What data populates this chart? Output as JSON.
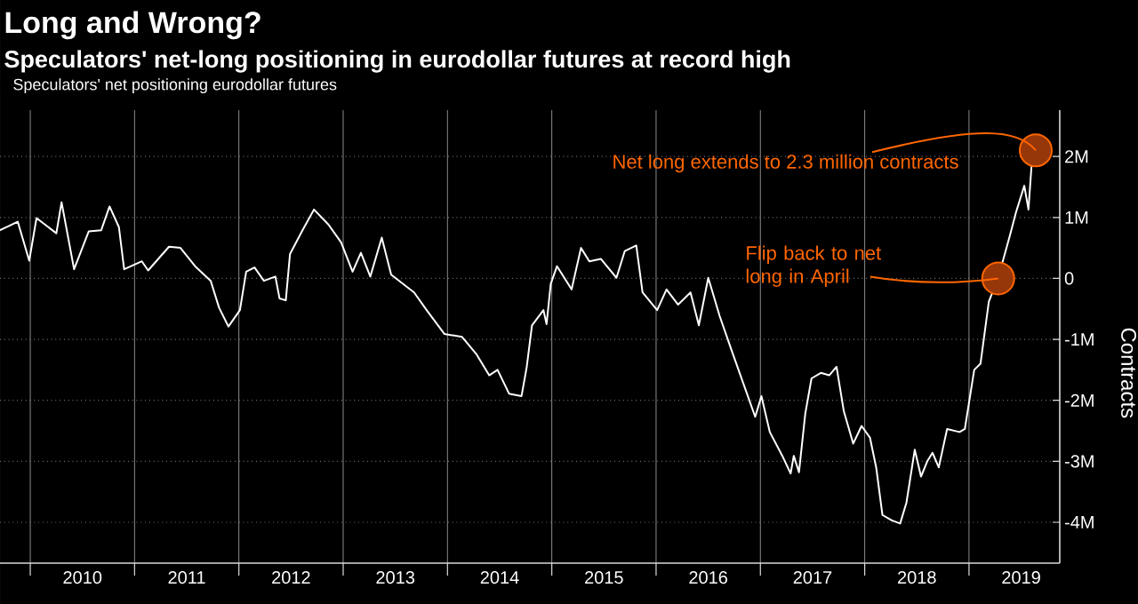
{
  "chart_data": {
    "type": "line",
    "title": "Long and Wrong?",
    "subtitle": "Speculators' net-long positioning in eurodollar futures at record high",
    "ylabel": "Contracts",
    "series": [
      {
        "name": "Speculators' net positioning eurodollar futures",
        "color": "#ffffff",
        "x": [
          2009.71,
          2009.88,
          2009.99,
          2010.06,
          2010.25,
          2010.3,
          2010.42,
          2010.56,
          2010.68,
          2010.76,
          2010.85,
          2010.9,
          2011.07,
          2011.13,
          2011.33,
          2011.44,
          2011.58,
          2011.73,
          2011.81,
          2011.9,
          2012.01,
          2012.07,
          2012.15,
          2012.24,
          2012.35,
          2012.39,
          2012.45,
          2012.49,
          2012.61,
          2012.72,
          2012.86,
          2012.98,
          2013.09,
          2013.17,
          2013.26,
          2013.37,
          2013.46,
          2013.68,
          2013.8,
          2013.97,
          2014.14,
          2014.28,
          2014.4,
          2014.48,
          2014.59,
          2014.71,
          2014.76,
          2014.81,
          2014.92,
          2014.95,
          2014.99,
          2015.05,
          2015.19,
          2015.28,
          2015.36,
          2015.47,
          2015.62,
          2015.7,
          2015.81,
          2015.87,
          2016.01,
          2016.1,
          2016.21,
          2016.33,
          2016.41,
          2016.5,
          2016.61,
          2016.72,
          2016.84,
          2016.95,
          2017.01,
          2017.09,
          2017.21,
          2017.29,
          2017.32,
          2017.37,
          2017.43,
          2017.49,
          2017.58,
          2017.66,
          2017.73,
          2017.8,
          2017.89,
          2017.97,
          2018.05,
          2018.11,
          2018.17,
          2018.26,
          2018.34,
          2018.4,
          2018.48,
          2018.54,
          2018.6,
          2018.65,
          2018.71,
          2018.79,
          2018.91,
          2018.96,
          2019.05,
          2019.11,
          2019.19,
          2019.28,
          2019.39,
          2019.45,
          2019.53,
          2019.57,
          2019.6,
          2019.64
        ],
        "values": [
          0.79,
          0.93,
          0.29,
          0.99,
          0.74,
          1.25,
          0.15,
          0.77,
          0.79,
          1.18,
          0.84,
          0.15,
          0.28,
          0.13,
          0.52,
          0.5,
          0.2,
          -0.04,
          -0.48,
          -0.79,
          -0.52,
          0.11,
          0.18,
          -0.04,
          0.03,
          -0.33,
          -0.36,
          0.4,
          0.79,
          1.13,
          0.88,
          0.59,
          0.11,
          0.42,
          0.03,
          0.67,
          0.06,
          -0.23,
          -0.52,
          -0.91,
          -0.96,
          -1.25,
          -1.59,
          -1.5,
          -1.89,
          -1.93,
          -1.45,
          -0.77,
          -0.52,
          -0.75,
          -0.09,
          0.2,
          -0.18,
          0.5,
          0.28,
          0.32,
          0.01,
          0.45,
          0.54,
          -0.23,
          -0.52,
          -0.18,
          -0.43,
          -0.23,
          -0.77,
          0.01,
          -0.62,
          -1.16,
          -1.74,
          -2.27,
          -1.93,
          -2.52,
          -2.91,
          -3.2,
          -2.91,
          -3.18,
          -2.22,
          -1.64,
          -1.55,
          -1.59,
          -1.45,
          -2.18,
          -2.71,
          -2.42,
          -2.61,
          -3.1,
          -3.88,
          -3.97,
          -4.02,
          -3.68,
          -2.81,
          -3.25,
          -3.0,
          -2.86,
          -3.1,
          -2.47,
          -2.52,
          -2.47,
          -1.5,
          -1.4,
          -0.38,
          0.01,
          0.69,
          1.08,
          1.52,
          1.13,
          1.86,
          2.1
        ]
      }
    ],
    "xlim": [
      2009.71,
      2019.87
    ],
    "xticks": [
      {
        "value": 2010,
        "label": null
      },
      {
        "value": 2010.5,
        "label": "2010"
      },
      {
        "value": 2011,
        "label": null
      },
      {
        "value": 2011.5,
        "label": "2011"
      },
      {
        "value": 2012,
        "label": null
      },
      {
        "value": 2012.5,
        "label": "2012"
      },
      {
        "value": 2013,
        "label": null
      },
      {
        "value": 2013.5,
        "label": "2013"
      },
      {
        "value": 2014,
        "label": null
      },
      {
        "value": 2014.5,
        "label": "2014"
      },
      {
        "value": 2015,
        "label": null
      },
      {
        "value": 2015.5,
        "label": "2015"
      },
      {
        "value": 2016,
        "label": null
      },
      {
        "value": 2016.5,
        "label": "2016"
      },
      {
        "value": 2017,
        "label": null
      },
      {
        "value": 2017.5,
        "label": "2017"
      },
      {
        "value": 2018,
        "label": null
      },
      {
        "value": 2018.5,
        "label": "2018"
      },
      {
        "value": 2019,
        "label": null
      },
      {
        "value": 2019.5,
        "label": "2019"
      }
    ],
    "ylim": [
      -4.67,
      2.76
    ],
    "yticks": [
      {
        "value": -4,
        "label": "-4M"
      },
      {
        "value": -3,
        "label": "-3M"
      },
      {
        "value": -2,
        "label": "-2M"
      },
      {
        "value": -1,
        "label": "-1M"
      },
      {
        "value": 0,
        "label": "0"
      },
      {
        "value": 1,
        "label": "1M"
      },
      {
        "value": 2,
        "label": "2M"
      }
    ],
    "grid": true,
    "legend": "top left",
    "annotations": [
      {
        "text": "Net long extends to 2.3 million contracts",
        "x": 2019.64,
        "y": 2.1
      },
      {
        "text": "Flip back to net long in April",
        "x": 2019.28,
        "y": 0
      }
    ]
  }
}
